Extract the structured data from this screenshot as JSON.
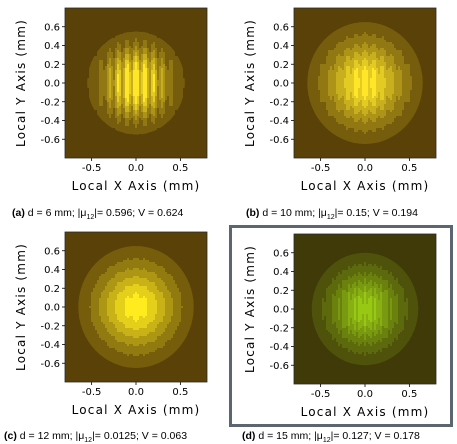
{
  "chart_data": [
    {
      "type": "heatmap",
      "xlabel": "Local X Axis (mm)",
      "ylabel": "Local Y Axis (mm)",
      "xticks": [
        "-0.5",
        "0.0",
        "0.5"
      ],
      "xtick_values": [
        -0.5,
        0.0,
        0.5
      ],
      "yticks": [
        "0.6",
        "0.4",
        "0.2",
        "0.0",
        "-0.2",
        "-0.4",
        "-0.6"
      ],
      "ytick_values": [
        0.6,
        0.4,
        0.2,
        0.0,
        -0.2,
        -0.4,
        -0.6
      ],
      "xlim": [
        -0.8,
        0.8
      ],
      "ylim": [
        -0.8,
        0.8
      ],
      "beam_radius": 0.55,
      "fringe_period": 0.1,
      "visibility": 0.624,
      "background": "#5a4108",
      "hue": [
        255,
        230,
        40
      ],
      "caption": {
        "tag": "(a)",
        "prefix": "d = 6 mm; |μ",
        "sub": "12",
        "suffix": "|= 0.596; V = 0.624"
      }
    },
    {
      "type": "heatmap",
      "xlabel": "Local X Axis (mm)",
      "ylabel": "Local Y Axis (mm)",
      "xticks": [
        "-0.5",
        "0.0",
        "0.5"
      ],
      "xtick_values": [
        -0.5,
        0.0,
        0.5
      ],
      "yticks": [
        "0.6",
        "0.4",
        "0.2",
        "0.0",
        "-0.2",
        "-0.4",
        "-0.6"
      ],
      "ytick_values": [
        0.6,
        0.4,
        0.2,
        0.0,
        -0.2,
        -0.4,
        -0.6
      ],
      "xlim": [
        -0.8,
        0.8
      ],
      "ylim": [
        -0.8,
        0.8
      ],
      "beam_radius": 0.65,
      "fringe_period": 0.1,
      "visibility": 0.194,
      "background": "#5a4108",
      "hue": [
        255,
        230,
        40
      ],
      "caption": {
        "tag": "(b)",
        "prefix": "d = 10 mm; |μ",
        "sub": "12",
        "suffix": "|= 0.15; V = 0.194"
      }
    },
    {
      "type": "heatmap",
      "xlabel": "Local X Axis (mm)",
      "ylabel": "Local Y Axis (mm)",
      "xticks": [
        "-0.5",
        "0.0",
        "0.5"
      ],
      "xtick_values": [
        -0.5,
        0.0,
        0.5
      ],
      "yticks": [
        "0.6",
        "0.4",
        "0.2",
        "0.0",
        "-0.2",
        "-0.4",
        "-0.6"
      ],
      "ytick_values": [
        0.6,
        0.4,
        0.2,
        0.0,
        -0.2,
        -0.4,
        -0.6
      ],
      "xlim": [
        -0.8,
        0.8
      ],
      "ylim": [
        -0.8,
        0.8
      ],
      "beam_radius": 0.65,
      "fringe_period": 0.1,
      "visibility": 0.063,
      "background": "#5a4108",
      "hue": [
        255,
        235,
        30
      ],
      "caption": {
        "tag": "(c)",
        "prefix": "d = 12 mm; |μ",
        "sub": "12",
        "suffix": "|= 0.0125; V = 0.063"
      }
    },
    {
      "type": "heatmap",
      "xlabel": "Local X Axis (mm)",
      "ylabel": "Local Y Axis (mm)",
      "xticks": [
        "-0.5",
        "0.0",
        "0.5"
      ],
      "xtick_values": [
        -0.5,
        0.0,
        0.5
      ],
      "yticks": [
        "0.6",
        "0.4",
        "0.2",
        "0.0",
        "-0.2",
        "-0.4",
        "-0.6"
      ],
      "ytick_values": [
        0.6,
        0.4,
        0.2,
        0.0,
        -0.2,
        -0.4,
        -0.6
      ],
      "xlim": [
        -0.8,
        0.8
      ],
      "ylim": [
        -0.8,
        0.8
      ],
      "beam_radius": 0.6,
      "fringe_period": 0.06,
      "visibility": 0.178,
      "background": "#3f3a08",
      "hue": [
        150,
        200,
        20
      ],
      "caption": {
        "tag": "(d)",
        "prefix": "d = 15 mm; |μ",
        "sub": "12",
        "suffix": "|= 0.127; V = 0.178"
      }
    }
  ]
}
